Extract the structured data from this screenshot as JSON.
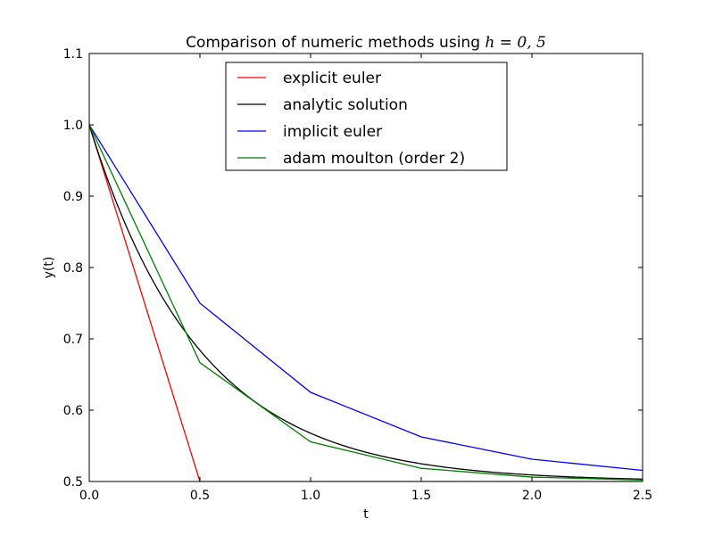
{
  "chart_data": {
    "type": "line",
    "title_text": "Comparison of numeric methods using ",
    "title_math": "h = 0, 5",
    "xlabel": "t",
    "ylabel": "y(t)",
    "xlim": [
      0.0,
      2.5
    ],
    "ylim": [
      0.5,
      1.1
    ],
    "xticks": [
      "0.0",
      "0.5",
      "1.0",
      "1.5",
      "2.0",
      "2.5"
    ],
    "yticks": [
      "0.5",
      "0.6",
      "0.7",
      "0.8",
      "0.9",
      "1.0",
      "1.1"
    ],
    "grid": false,
    "legend_position": "top-center",
    "series": [
      {
        "name": "explicit euler",
        "color": "#ff0000",
        "x": [
          0.0,
          0.5,
          1.0,
          1.5,
          2.0,
          2.5
        ],
        "y": [
          1.0,
          0.5,
          0.5,
          0.5,
          0.5,
          0.5
        ]
      },
      {
        "name": "analytic solution",
        "color": "#000000",
        "function": "0.5 + 0.5*exp(-2t)"
      },
      {
        "name": "implicit euler",
        "color": "#0000ff",
        "x": [
          0.0,
          0.5,
          1.0,
          1.5,
          2.0,
          2.5
        ],
        "y": [
          1.0,
          0.75,
          0.625,
          0.5625,
          0.53125,
          0.515625
        ]
      },
      {
        "name": "adam moulton (order 2)",
        "color": "#008000",
        "x": [
          0.0,
          0.5,
          1.0,
          1.5,
          2.0,
          2.5
        ],
        "y": [
          1.0,
          0.6667,
          0.5556,
          0.5185,
          0.5062,
          0.5021
        ]
      }
    ]
  }
}
